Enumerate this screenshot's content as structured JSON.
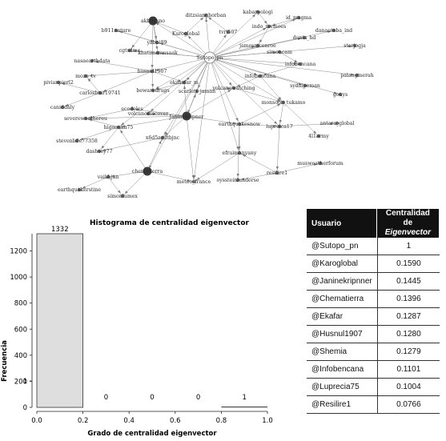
{
  "network": {
    "nodes": [
      {
        "id": "akboyano",
        "label": "akboyano",
        "size": "large"
      },
      {
        "id": "ditzsianghorban",
        "label": "ditzsianghorban",
        "size": "small"
      },
      {
        "id": "kabarpologi",
        "label": "kabarpologi",
        "size": "small"
      },
      {
        "id": "id_magma",
        "label": "id_magma",
        "size": "small"
      },
      {
        "id": "karoglobal",
        "label": "Karoglobal",
        "size": "small"
      },
      {
        "id": "tvri507",
        "label": "tvri507",
        "size": "small"
      },
      {
        "id": "indo_mvmoes",
        "label": "indo_mvmoes",
        "size": "small"
      },
      {
        "id": "dunia_hd",
        "label": "dunia_hd",
        "size": "small"
      },
      {
        "id": "danautoba_ind",
        "label": "danautoba_ind",
        "size": "small"
      },
      {
        "id": "b911nature",
        "label": "b911nature",
        "size": "small"
      },
      {
        "id": "yabni89",
        "label": "yabni89",
        "size": "small"
      },
      {
        "id": "cgtsdme",
        "label": "cgtsdme",
        "size": "small"
      },
      {
        "id": "khatimamusaak",
        "label": "khatimamusaak",
        "size": "small"
      },
      {
        "id": "sutopo",
        "label": "Sutopo_pn",
        "size": "hub"
      },
      {
        "id": "jamesmcenroe",
        "label": "jamesmcenroe",
        "size": "small"
      },
      {
        "id": "simoncam",
        "label": "simoncam",
        "size": "small"
      },
      {
        "id": "infobencana",
        "label": "infobencana",
        "size": "small"
      },
      {
        "id": "starjogja",
        "label": "starjogja",
        "size": "small"
      },
      {
        "id": "nasaearthdata",
        "label": "nasaearthdata",
        "size": "small"
      },
      {
        "id": "husnul",
        "label": "husnul1907",
        "size": "small"
      },
      {
        "id": "palangmerah",
        "label": "palangmerah",
        "size": "small"
      },
      {
        "id": "mozo_tv",
        "label": "mozo_tv",
        "size": "small"
      },
      {
        "id": "infobencana2",
        "label": "infobencana",
        "size": "small"
      },
      {
        "id": "pivianpierl2",
        "label": "pivianpierl2",
        "size": "small"
      },
      {
        "id": "ekasafar",
        "label": "ekasafar_m",
        "size": "small"
      },
      {
        "id": "sydnipeman",
        "label": "sydnipeman",
        "size": "small"
      },
      {
        "id": "bewaredrugs",
        "label": "bewaredrugs",
        "size": "small"
      },
      {
        "id": "scarlett",
        "label": "scarlett_jaman",
        "size": "small"
      },
      {
        "id": "volcanowatching",
        "label": "volcanowatching",
        "size": "small"
      },
      {
        "id": "gonys",
        "label": "gonys",
        "size": "small"
      },
      {
        "id": "carlosbmr",
        "label": "carlosbmr19741",
        "size": "small"
      },
      {
        "id": "caniddaly",
        "label": "caniddaly",
        "size": "small"
      },
      {
        "id": "ecodeles",
        "label": "ecodeles",
        "size": "small"
      },
      {
        "id": "volcanodiscover",
        "label": "volcanodiscover",
        "size": "small"
      },
      {
        "id": "janine",
        "label": "Janinekripner",
        "size": "large"
      },
      {
        "id": "monsoon",
        "label": "monsoon_tukamo",
        "size": "small"
      },
      {
        "id": "severeweather",
        "label": "severeweathereu",
        "size": "small"
      },
      {
        "id": "earthquakesnow",
        "label": "earthquakesnow",
        "size": "small"
      },
      {
        "id": "lupreica",
        "label": "lupreica17",
        "size": "small"
      },
      {
        "id": "antara_global",
        "label": "antara_global",
        "size": "small"
      },
      {
        "id": "higoonka",
        "label": "higoonka75",
        "size": "small"
      },
      {
        "id": "stevenbrown",
        "label": "stevenb0e77358",
        "size": "small"
      },
      {
        "id": "x6d5",
        "label": "x6d5zgdtbjnc",
        "size": "small"
      },
      {
        "id": "4l1army",
        "label": "4l1army",
        "size": "small"
      },
      {
        "id": "dashsey",
        "label": "dashsey77",
        "size": "small"
      },
      {
        "id": "efraim",
        "label": "efraimanyany",
        "size": "small"
      },
      {
        "id": "musweatherforum",
        "label": "musweatherforum",
        "size": "small"
      },
      {
        "id": "chematierra",
        "label": "chematierra",
        "size": "large"
      },
      {
        "id": "resilire",
        "label": "resilire1",
        "size": "small"
      },
      {
        "id": "vaikhjan",
        "label": "vaikhjan",
        "size": "small"
      },
      {
        "id": "oyssteinlunderse",
        "label": "oyssteinlunderse",
        "size": "small"
      },
      {
        "id": "meteo_france",
        "label": "meteo_france",
        "size": "small"
      },
      {
        "id": "earthquakerstine",
        "label": "earthquakerstine",
        "size": "small"
      },
      {
        "id": "simonlumex",
        "label": "simonlumex",
        "size": "small"
      }
    ]
  },
  "histogram": {
    "chart_data": {
      "type": "bar",
      "title": "Histograma de centralidad eigenvector",
      "xlabel": "Grado de centralidad eigenvector",
      "ylabel": "Frecuencia",
      "bins": [
        {
          "start": 0.0,
          "end": 0.2,
          "count": 1332,
          "label": "1332"
        },
        {
          "start": 0.2,
          "end": 0.4,
          "count": 0,
          "label": "0"
        },
        {
          "start": 0.4,
          "end": 0.6,
          "count": 0,
          "label": "0"
        },
        {
          "start": 0.6,
          "end": 0.8,
          "count": 0,
          "label": "0"
        },
        {
          "start": 0.8,
          "end": 1.0,
          "count": 1,
          "label": "1"
        }
      ],
      "xlim": [
        0,
        1
      ],
      "ylim": [
        0,
        1332
      ],
      "xticks": [
        "0.0",
        "0.2",
        "0.4",
        "0.6",
        "0.8",
        "1.0"
      ],
      "yticks": [
        0,
        1,
        200,
        400,
        600,
        800,
        1000,
        1200
      ],
      "bar_color": "#dedede"
    }
  },
  "table": {
    "header_user": "Usuario",
    "header_value_line1": "Centralidad de",
    "header_value_line2": "Eigenvector",
    "rows": [
      {
        "user": "@Sutopo_pn",
        "value": "1"
      },
      {
        "user": "@Karoglobal",
        "value": "0.1590"
      },
      {
        "user": "@Janinekripnner",
        "value": "0.1445"
      },
      {
        "user": "@Chematierra",
        "value": "0.1396"
      },
      {
        "user": "@Ekafar",
        "value": "0.1287"
      },
      {
        "user": "@Husnul1907",
        "value": "0.1280"
      },
      {
        "user": "@Shemia",
        "value": "0.1279"
      },
      {
        "user": "@Infobencana",
        "value": "0.1101"
      },
      {
        "user": "@Luprecia75",
        "value": "0.1004"
      },
      {
        "user": "@Resilire1",
        "value": "0.0766"
      }
    ]
  }
}
